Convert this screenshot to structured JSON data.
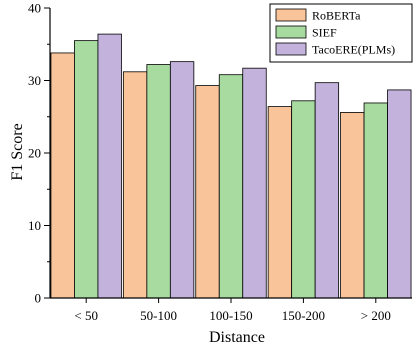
{
  "chart_data": {
    "type": "bar",
    "categories": [
      "< 50",
      "50-100",
      "100-150",
      "150-200",
      "> 200"
    ],
    "series": [
      {
        "name": "RoBERTa",
        "values": [
          33.8,
          31.2,
          29.3,
          26.4,
          25.6
        ],
        "color": "#F9C49A"
      },
      {
        "name": "SIEF",
        "values": [
          35.5,
          32.2,
          30.8,
          27.2,
          26.9
        ],
        "color": "#A7DBA0"
      },
      {
        "name": "TacoERE(PLMs)",
        "values": [
          36.4,
          32.6,
          31.7,
          29.7,
          28.7
        ],
        "color": "#C3B3DC"
      }
    ],
    "xlabel": "Distance",
    "ylabel": "F1 Score",
    "ylim": [
      0,
      40
    ],
    "yticks": [
      0,
      10,
      20,
      30,
      40
    ],
    "ytick_labels": [
      "0",
      "10",
      "20",
      "30",
      "40"
    ],
    "legend_position": "top-right",
    "grid": false
  }
}
